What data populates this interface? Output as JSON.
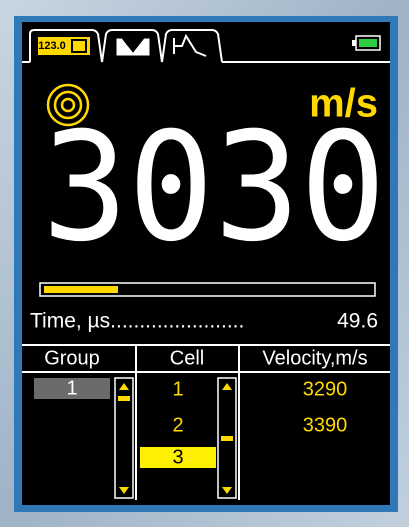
{
  "tabs": {
    "first_icon": "123.0"
  },
  "unit": "m/s",
  "reading": "3030",
  "time": {
    "label": "Time, µs.......................",
    "value": "49.6"
  },
  "table": {
    "headers": [
      "Group",
      "Cell",
      "Velocity,m/s"
    ],
    "groups": [
      "1"
    ],
    "cells": [
      "1",
      "2",
      "3"
    ],
    "velocities": [
      "3290",
      "3390"
    ]
  }
}
